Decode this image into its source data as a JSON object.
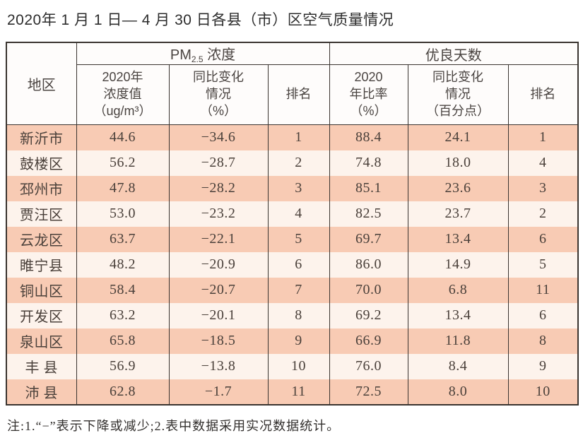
{
  "title": "2020年 1 月 1 日— 4 月 30 日各县（市）区空气质量情况",
  "note": "注:1.“−”表示下降或减少;2.表中数据采用实况数据统计。",
  "colors": {
    "row_odd": "#f8cbb4",
    "row_even": "#fdf3ec",
    "border": "#3a3430",
    "header_bg": "#fefcfb"
  },
  "table": {
    "header": {
      "region": "地区",
      "pm_group": {
        "prefix": "PM",
        "sub": "2.5",
        "suffix": " 浓度"
      },
      "good_group": "优良天数",
      "sub_headers": {
        "pm_value": "2020年\n浓度值\n（ug/m³）",
        "pm_change": "同比变化\n情况\n（%）",
        "pm_rank": "排名",
        "good_rate": "2020\n年比率\n（%）",
        "good_change": "同比变化\n情况\n（百分点）",
        "good_rank": "排名"
      }
    },
    "rows": [
      {
        "region": "新沂市",
        "pm_value": "44.6",
        "pm_change": "−34.6",
        "pm_rank": "1",
        "good_rate": "88.4",
        "good_change": "24.1",
        "good_rank": "1"
      },
      {
        "region": "鼓楼区",
        "pm_value": "56.2",
        "pm_change": "−28.7",
        "pm_rank": "2",
        "good_rate": "74.8",
        "good_change": "18.0",
        "good_rank": "4"
      },
      {
        "region": "邳州市",
        "pm_value": "47.8",
        "pm_change": "−28.2",
        "pm_rank": "3",
        "good_rate": "85.1",
        "good_change": "23.6",
        "good_rank": "3"
      },
      {
        "region": "贾汪区",
        "pm_value": "53.0",
        "pm_change": "−23.2",
        "pm_rank": "4",
        "good_rate": "82.5",
        "good_change": "23.7",
        "good_rank": "2"
      },
      {
        "region": "云龙区",
        "pm_value": "63.7",
        "pm_change": "−22.1",
        "pm_rank": "5",
        "good_rate": "69.7",
        "good_change": "13.4",
        "good_rank": "6"
      },
      {
        "region": "睢宁县",
        "pm_value": "48.2",
        "pm_change": "−20.9",
        "pm_rank": "6",
        "good_rate": "86.0",
        "good_change": "14.9",
        "good_rank": "5"
      },
      {
        "region": "铜山区",
        "pm_value": "58.4",
        "pm_change": "−20.7",
        "pm_rank": "7",
        "good_rate": "70.0",
        "good_change": "6.8",
        "good_rank": "11"
      },
      {
        "region": "开发区",
        "pm_value": "63.2",
        "pm_change": "−20.1",
        "pm_rank": "8",
        "good_rate": "69.2",
        "good_change": "13.4",
        "good_rank": "6"
      },
      {
        "region": "泉山区",
        "pm_value": "65.8",
        "pm_change": "−18.5",
        "pm_rank": "9",
        "good_rate": "66.9",
        "good_change": "11.8",
        "good_rank": "8"
      },
      {
        "region": "丰 县",
        "pm_value": "56.9",
        "pm_change": "−13.8",
        "pm_rank": "10",
        "good_rate": "76.0",
        "good_change": "8.4",
        "good_rank": "9"
      },
      {
        "region": "沛 县",
        "pm_value": "62.8",
        "pm_change": "−1.7",
        "pm_rank": "11",
        "good_rate": "72.5",
        "good_change": "8.0",
        "good_rank": "10"
      }
    ]
  }
}
